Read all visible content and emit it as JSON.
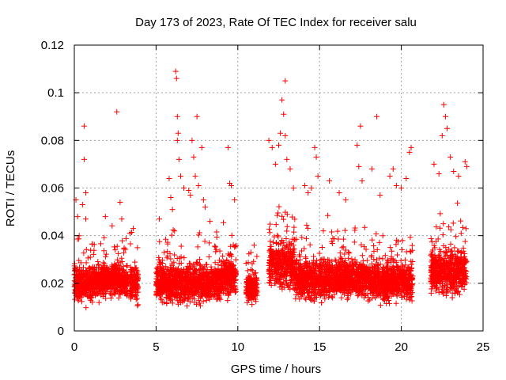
{
  "chart_data": {
    "type": "scatter",
    "title": "Day 173 of 2023, Rate Of TEC Index for receiver salu",
    "xlabel": "GPS time / hours",
    "ylabel": "ROTI / TECUs",
    "xlim": [
      0,
      25
    ],
    "ylim": [
      0,
      0.12
    ],
    "x_ticks": [
      "0",
      "5",
      "10",
      "15",
      "20",
      "25"
    ],
    "y_ticks": [
      "0",
      "0.02",
      "0.04",
      "0.06",
      "0.08",
      "0.1",
      "0.12"
    ],
    "grid": true,
    "marker": "plus",
    "marker_color": "#ff0000",
    "coverage_segments": [
      {
        "start": 0.0,
        "end": 1.1,
        "base": 0.02,
        "spread": 0.011
      },
      {
        "start": 1.1,
        "end": 3.3,
        "base": 0.021,
        "spread": 0.01
      },
      {
        "start": 3.4,
        "end": 3.9,
        "base": 0.02,
        "spread": 0.011
      },
      {
        "start": 5.0,
        "end": 9.1,
        "base": 0.02,
        "spread": 0.011
      },
      {
        "start": 9.1,
        "end": 9.9,
        "base": 0.023,
        "spread": 0.011
      },
      {
        "start": 10.5,
        "end": 11.2,
        "base": 0.018,
        "spread": 0.008
      },
      {
        "start": 11.9,
        "end": 13.5,
        "base": 0.028,
        "spread": 0.014
      },
      {
        "start": 13.5,
        "end": 16.2,
        "base": 0.022,
        "spread": 0.012
      },
      {
        "start": 16.2,
        "end": 17.7,
        "base": 0.022,
        "spread": 0.011
      },
      {
        "start": 17.7,
        "end": 20.7,
        "base": 0.021,
        "spread": 0.011
      },
      {
        "start": 21.8,
        "end": 24.0,
        "base": 0.025,
        "spread": 0.013
      }
    ],
    "highlight_points": [
      [
        0.1,
        0.055
      ],
      [
        0.2,
        0.048
      ],
      [
        0.5,
        0.053
      ],
      [
        0.6,
        0.086
      ],
      [
        0.6,
        0.072
      ],
      [
        0.7,
        0.058
      ],
      [
        0.7,
        0.047
      ],
      [
        1.9,
        0.048
      ],
      [
        2.6,
        0.092
      ],
      [
        2.8,
        0.054
      ],
      [
        2.9,
        0.047
      ],
      [
        3.4,
        0.041
      ],
      [
        3.6,
        0.043
      ],
      [
        5.2,
        0.047
      ],
      [
        5.8,
        0.064
      ],
      [
        5.9,
        0.056
      ],
      [
        6.0,
        0.051
      ],
      [
        6.2,
        0.109
      ],
      [
        6.25,
        0.106
      ],
      [
        6.3,
        0.09
      ],
      [
        6.35,
        0.083
      ],
      [
        6.3,
        0.08
      ],
      [
        6.4,
        0.072
      ],
      [
        6.5,
        0.065
      ],
      [
        6.7,
        0.06
      ],
      [
        7.0,
        0.059
      ],
      [
        7.1,
        0.057
      ],
      [
        7.2,
        0.08
      ],
      [
        7.3,
        0.073
      ],
      [
        7.5,
        0.09
      ],
      [
        7.4,
        0.065
      ],
      [
        7.6,
        0.061
      ],
      [
        7.8,
        0.077
      ],
      [
        7.9,
        0.055
      ],
      [
        8.0,
        0.052
      ],
      [
        8.3,
        0.046
      ],
      [
        9.4,
        0.077
      ],
      [
        9.5,
        0.062
      ],
      [
        9.6,
        0.061
      ],
      [
        9.8,
        0.055
      ],
      [
        10.8,
        0.033
      ],
      [
        11.0,
        0.036
      ],
      [
        11.9,
        0.08
      ],
      [
        12.1,
        0.077
      ],
      [
        12.3,
        0.07
      ],
      [
        12.5,
        0.078
      ],
      [
        12.6,
        0.083
      ],
      [
        12.7,
        0.097
      ],
      [
        12.8,
        0.091
      ],
      [
        12.9,
        0.105
      ],
      [
        12.9,
        0.082
      ],
      [
        13.0,
        0.072
      ],
      [
        13.2,
        0.068
      ],
      [
        13.4,
        0.06
      ],
      [
        14.1,
        0.061
      ],
      [
        14.3,
        0.058
      ],
      [
        14.5,
        0.06
      ],
      [
        14.7,
        0.077
      ],
      [
        14.8,
        0.073
      ],
      [
        14.9,
        0.065
      ],
      [
        15.6,
        0.063
      ],
      [
        16.2,
        0.058
      ],
      [
        16.6,
        0.055
      ],
      [
        17.3,
        0.078
      ],
      [
        17.4,
        0.069
      ],
      [
        17.5,
        0.086
      ],
      [
        17.6,
        0.063
      ],
      [
        18.2,
        0.068
      ],
      [
        18.5,
        0.09
      ],
      [
        18.7,
        0.057
      ],
      [
        19.3,
        0.065
      ],
      [
        19.5,
        0.068
      ],
      [
        19.7,
        0.061
      ],
      [
        20.0,
        0.06
      ],
      [
        20.3,
        0.064
      ],
      [
        20.6,
        0.077
      ],
      [
        20.5,
        0.075
      ],
      [
        22.0,
        0.07
      ],
      [
        22.3,
        0.066
      ],
      [
        22.5,
        0.082
      ],
      [
        22.6,
        0.095
      ],
      [
        22.7,
        0.09
      ],
      [
        22.8,
        0.085
      ],
      [
        23.0,
        0.073
      ],
      [
        23.2,
        0.067
      ],
      [
        23.5,
        0.065
      ],
      [
        23.9,
        0.071
      ],
      [
        24.0,
        0.069
      ]
    ]
  }
}
